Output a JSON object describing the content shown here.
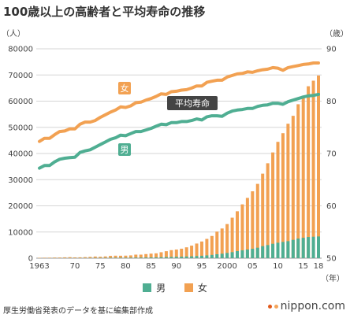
{
  "title": "100歳以上の高齢者と平均寿命の推移",
  "source": "厚生労働省発表のデータを基に編集部作成",
  "brand": "nippon.com",
  "colors": {
    "male": "#4fae92",
    "female": "#f2a152",
    "grid": "#d5d5d5",
    "label_dark": "#444444"
  },
  "chart_data": {
    "type": "bar+line",
    "title": "100歳以上の高齢者と平均寿命の推移",
    "left_axis": {
      "unit": "（人）",
      "ylim": [
        0,
        80000
      ],
      "ticks": [
        0,
        10000,
        20000,
        30000,
        40000,
        50000,
        60000,
        70000,
        80000
      ]
    },
    "right_axis": {
      "unit": "（歳）",
      "ylim": [
        50,
        90
      ],
      "ticks": [
        50,
        60,
        70,
        80,
        90
      ]
    },
    "x_axis": {
      "unit": "（年）",
      "ticks": [
        "1963",
        "70",
        "75",
        "80",
        "85",
        "90",
        "95",
        "2000",
        "05",
        "10",
        "15",
        "18"
      ],
      "tick_years": [
        1963,
        1970,
        1975,
        1980,
        1985,
        1990,
        1995,
        2000,
        2005,
        2010,
        2015,
        2018
      ]
    },
    "legend": [
      "男",
      "女"
    ],
    "line_labels": {
      "female": "女",
      "male": "男",
      "avg": "平均寿命"
    },
    "years": [
      1963,
      1964,
      1965,
      1966,
      1967,
      1968,
      1969,
      1970,
      1971,
      1972,
      1973,
      1974,
      1975,
      1976,
      1977,
      1978,
      1979,
      1980,
      1981,
      1982,
      1983,
      1984,
      1985,
      1986,
      1987,
      1988,
      1989,
      1990,
      1991,
      1992,
      1993,
      1994,
      1995,
      1996,
      1997,
      1998,
      1999,
      2000,
      2001,
      2002,
      2003,
      2004,
      2005,
      2006,
      2007,
      2008,
      2009,
      2010,
      2011,
      2012,
      2013,
      2014,
      2015,
      2016,
      2017,
      2018
    ],
    "centenarians_total": [
      153,
      191,
      198,
      252,
      255,
      327,
      390,
      310,
      339,
      405,
      495,
      627,
      548,
      666,
      882,
      950,
      937,
      968,
      1072,
      1354,
      1354,
      1567,
      1740,
      1851,
      2271,
      2668,
      3078,
      3298,
      3625,
      4152,
      4802,
      5593,
      6378,
      7373,
      8491,
      10158,
      11346,
      13036,
      15475,
      17934,
      20561,
      23038,
      25554,
      28395,
      32295,
      36276,
      40399,
      44449,
      47756,
      51376,
      54397,
      58820,
      61568,
      65692,
      67824,
      69785
    ],
    "centenarians_male": [
      20,
      25,
      30,
      40,
      40,
      50,
      60,
      50,
      60,
      70,
      80,
      100,
      100,
      120,
      150,
      160,
      160,
      170,
      190,
      230,
      230,
      270,
      290,
      310,
      380,
      430,
      490,
      530,
      580,
      650,
      720,
      820,
      920,
      1060,
      1250,
      1500,
      1700,
      2000,
      2300,
      2700,
      3000,
      3300,
      3600,
      4000,
      4600,
      5000,
      5500,
      5900,
      6200,
      6500,
      7000,
      7500,
      7800,
      8100,
      8200,
      8300
    ],
    "life_expectancy_female": [
      72.3,
      72.9,
      72.9,
      73.6,
      74.2,
      74.3,
      74.7,
      74.7,
      75.6,
      76.0,
      76.0,
      76.3,
      76.9,
      77.4,
      77.9,
      78.3,
      78.9,
      78.8,
      79.1,
      79.7,
      79.8,
      80.2,
      80.5,
      80.9,
      81.4,
      81.3,
      81.8,
      81.9,
      82.1,
      82.2,
      82.5,
      82.9,
      82.9,
      83.6,
      83.8,
      84.0,
      84.0,
      84.6,
      84.9,
      85.2,
      85.3,
      85.6,
      85.5,
      85.8,
      86.0,
      86.1,
      86.4,
      86.3,
      85.9,
      86.4,
      86.6,
      86.8,
      87.0,
      87.1,
      87.3,
      87.3
    ],
    "life_expectancy_male": [
      67.2,
      67.7,
      67.7,
      68.4,
      68.9,
      69.1,
      69.2,
      69.3,
      70.2,
      70.5,
      70.7,
      71.2,
      71.7,
      72.2,
      72.7,
      73.0,
      73.5,
      73.4,
      73.8,
      74.2,
      74.2,
      74.5,
      74.8,
      75.2,
      75.6,
      75.5,
      75.9,
      75.9,
      76.1,
      76.1,
      76.3,
      76.6,
      76.4,
      77.0,
      77.2,
      77.2,
      77.1,
      77.7,
      78.1,
      78.3,
      78.4,
      78.6,
      78.6,
      79.0,
      79.2,
      79.3,
      79.6,
      79.6,
      79.4,
      79.9,
      80.2,
      80.5,
      80.8,
      81.0,
      81.1,
      81.3
    ]
  }
}
